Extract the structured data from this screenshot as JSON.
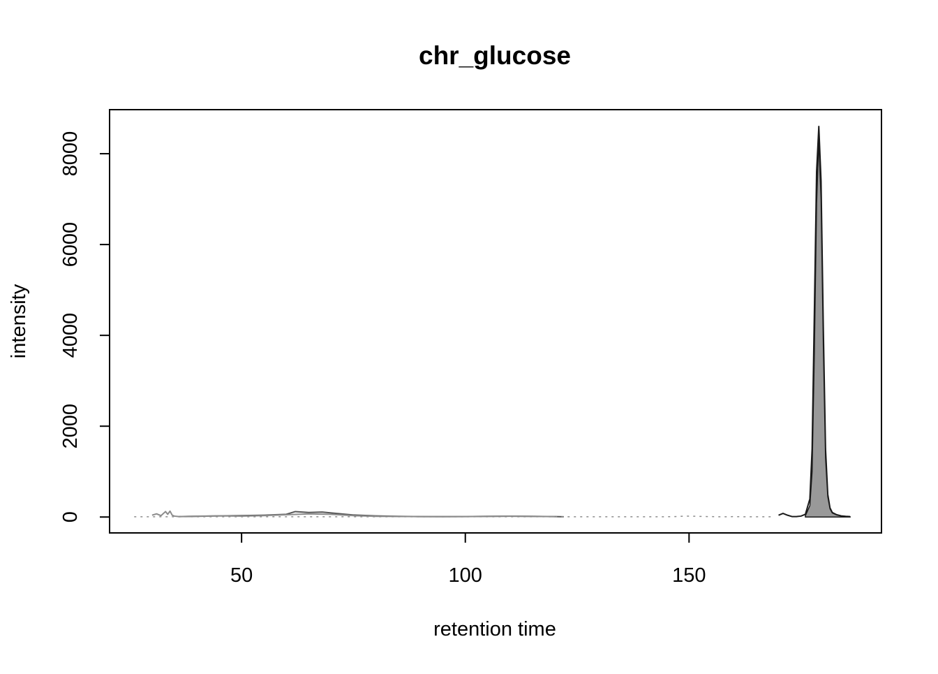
{
  "chart_data": {
    "type": "area",
    "title": "chr_glucose",
    "xlabel": "retention time",
    "ylabel": "intensity",
    "xlim": [
      20.5,
      193
    ],
    "ylim": [
      -350,
      8970
    ],
    "x_ticks": [
      50,
      100,
      150
    ],
    "y_ticks": [
      0,
      2000,
      4000,
      6000,
      8000
    ],
    "x_tick_labels": [
      "50",
      "100",
      "150"
    ],
    "y_tick_labels": [
      "0",
      "2000",
      "4000",
      "6000",
      "8000"
    ],
    "grid": false,
    "legend": "none",
    "colors": {
      "peak_fill": "#999999",
      "trace_dark": "#1a1a1a",
      "trace_mid": "#555555",
      "trace_light": "#8c8c8c",
      "frame": "#000000"
    },
    "series": [
      {
        "style": "dark",
        "x": [
          170,
          171,
          172,
          173,
          174,
          175,
          176,
          177,
          177.5,
          178,
          178.5,
          179,
          179.5,
          180,
          180.5,
          181,
          181.5,
          182,
          183,
          184,
          185,
          186
        ],
        "y": [
          40,
          80,
          40,
          10,
          10,
          20,
          60,
          400,
          1500,
          4500,
          7600,
          8600,
          7400,
          4200,
          1500,
          500,
          200,
          100,
          50,
          25,
          15,
          10
        ]
      },
      {
        "style": "filled",
        "x": [
          176,
          177,
          177.5,
          178,
          178.5,
          179,
          179.5,
          180,
          180.5,
          181,
          181.5,
          182,
          183,
          184,
          185,
          186
        ],
        "y": [
          30,
          250,
          1000,
          3600,
          6900,
          8300,
          7000,
          3800,
          1300,
          450,
          180,
          90,
          45,
          20,
          10,
          5
        ]
      },
      {
        "style": "mid",
        "x": [
          36,
          40,
          45,
          50,
          55,
          60,
          62,
          65,
          68,
          70,
          75,
          80,
          85,
          90,
          95,
          100,
          105,
          110,
          115,
          120,
          122
        ],
        "y": [
          10,
          15,
          25,
          30,
          40,
          60,
          120,
          100,
          110,
          90,
          45,
          25,
          15,
          10,
          8,
          10,
          15,
          20,
          15,
          10,
          5
        ]
      },
      {
        "style": "light",
        "x": [
          30,
          31,
          32,
          33,
          33.5,
          34,
          34.5,
          35,
          36,
          38,
          40,
          45,
          50,
          55,
          60,
          65,
          70,
          75,
          80,
          90,
          100,
          110,
          120
        ],
        "y": [
          40,
          70,
          30,
          120,
          60,
          130,
          40,
          20,
          10,
          15,
          20,
          25,
          20,
          30,
          50,
          70,
          60,
          30,
          15,
          10,
          12,
          18,
          10
        ]
      },
      {
        "style": "dashed",
        "x": [
          26,
          140,
          141,
          143,
          144,
          147,
          148,
          150,
          152,
          154,
          155,
          157,
          158,
          160,
          162,
          168,
          169
        ],
        "y": [
          5,
          5,
          5,
          5,
          5,
          10,
          15,
          20,
          15,
          10,
          10,
          5,
          5,
          10,
          5,
          5,
          5
        ]
      }
    ]
  }
}
